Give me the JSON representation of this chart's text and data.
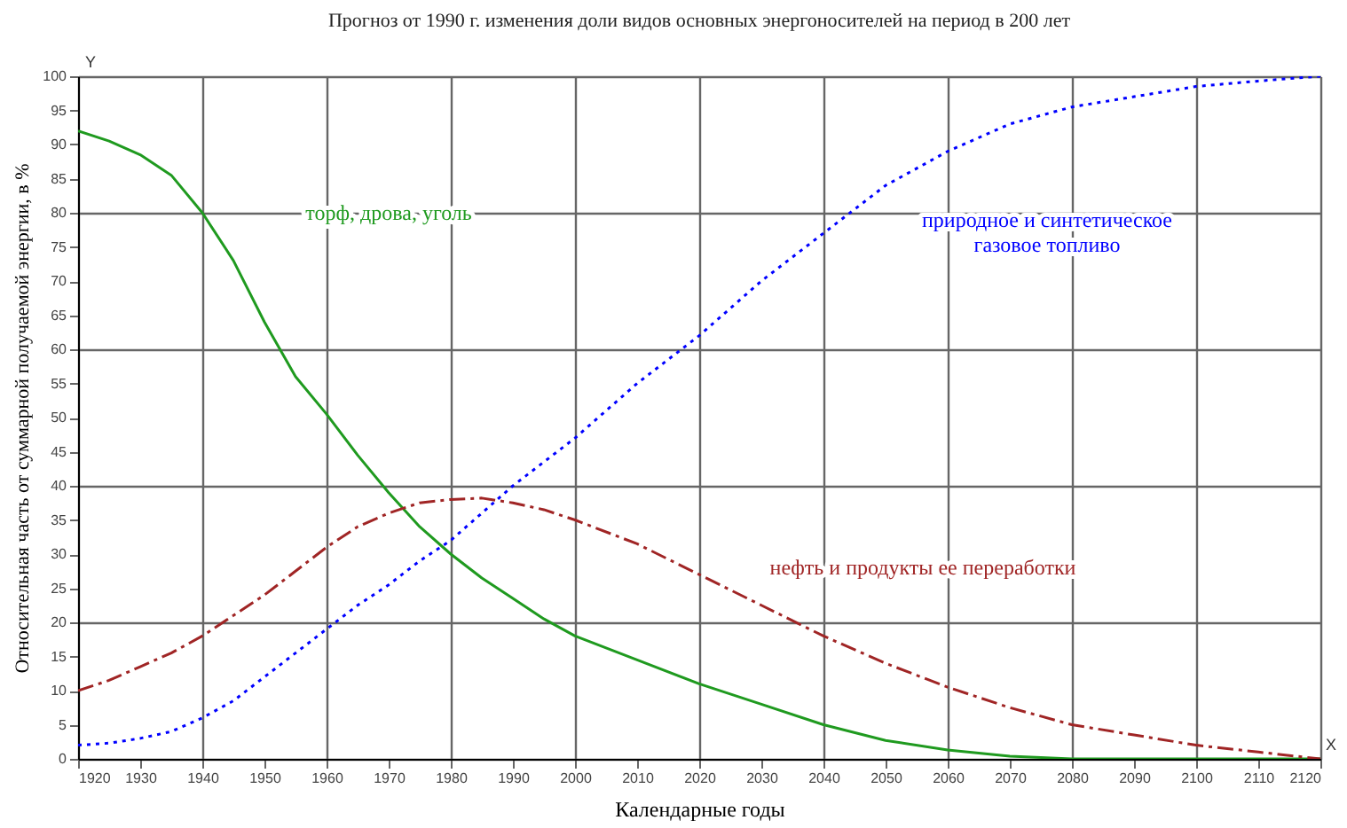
{
  "chart_data": {
    "type": "line",
    "title": "Прогноз от 1990 г. изменения доли видов основных энергоносителей на период  в 200 лет",
    "xlabel": "Календарные годы",
    "ylabel": "Относительная часть от суммарной  получаемой энергии,  в %",
    "annotations": [
      "Y",
      "X"
    ],
    "x": [
      1920,
      1925,
      1930,
      1935,
      1940,
      1945,
      1950,
      1955,
      1960,
      1965,
      1970,
      1975,
      1980,
      1985,
      1990,
      1995,
      2000,
      2010,
      2020,
      2030,
      2040,
      2050,
      2060,
      2070,
      2080,
      2090,
      2100,
      2110,
      2120
    ],
    "series": [
      {
        "name": "торф, дрова, уголь",
        "color": "#1f9a1f",
        "line_style": "solid",
        "values": [
          92,
          90.5,
          88.5,
          85.5,
          80,
          73,
          64,
          56,
          50.5,
          44.5,
          39,
          34,
          30,
          26.5,
          23.5,
          20.5,
          18,
          14.5,
          11,
          8,
          5,
          2.7,
          1.3,
          0.4,
          0,
          0,
          0,
          0,
          0
        ]
      },
      {
        "name": "нефть и продукты ее переработки",
        "color": "#a02525",
        "line_style": "dashed",
        "values": [
          10,
          11.5,
          13.5,
          15.5,
          18,
          21,
          24,
          27.5,
          31,
          34,
          36,
          37.5,
          38,
          38.2,
          37.5,
          36.5,
          35,
          31.5,
          27,
          22.5,
          18,
          14,
          10.5,
          7.5,
          5,
          3.5,
          2,
          1,
          0
        ]
      },
      {
        "name": "природное и синтетическое газовое топливо",
        "color": "#0000ff",
        "line_style": "dotted",
        "values": [
          2,
          2.3,
          3,
          4,
          6,
          8.5,
          12,
          15.5,
          19,
          22.5,
          25.5,
          29,
          32,
          36,
          40,
          43.5,
          47,
          55,
          62,
          70,
          77,
          84,
          89,
          93,
          95.5,
          97,
          98.5,
          99.3,
          100
        ]
      }
    ],
    "xlim": [
      1920,
      2120
    ],
    "xticks": [
      1920,
      1930,
      1940,
      1950,
      1960,
      1970,
      1980,
      1990,
      2000,
      2010,
      2020,
      2030,
      2040,
      2050,
      2060,
      2070,
      2080,
      2090,
      2100,
      2110,
      2120
    ],
    "ylim": [
      0,
      100
    ],
    "yticks": [
      0,
      5,
      10,
      15,
      20,
      25,
      30,
      35,
      40,
      45,
      50,
      55,
      60,
      65,
      70,
      75,
      80,
      85,
      90,
      95,
      100
    ],
    "grid": true,
    "legend": false,
    "marker": "none"
  }
}
